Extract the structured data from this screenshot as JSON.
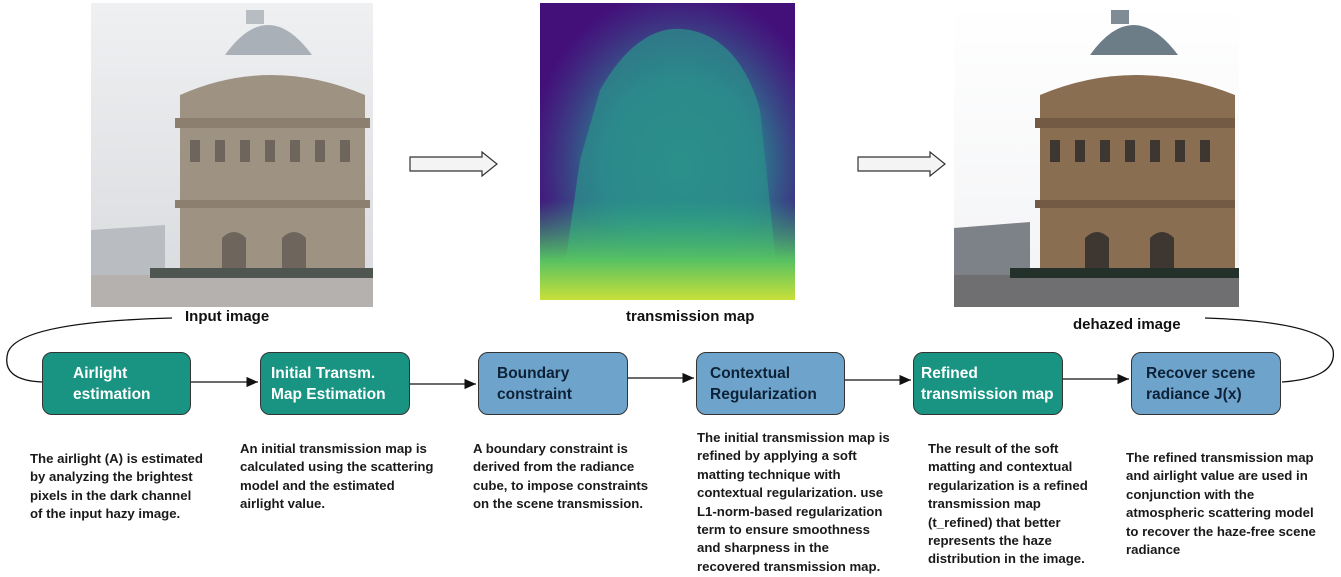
{
  "images": {
    "input_caption": "Input image",
    "transmission_caption": "transmission map",
    "dehazed_caption": "dehazed image"
  },
  "colors": {
    "green_node": "#1a9482",
    "blue_node": "#6ea3cc",
    "transmission_low": "#43107a",
    "transmission_high": "#c8e03a"
  },
  "steps": [
    {
      "line1": "Airlight",
      "line2": "estimation",
      "desc": [
        "The airlight (A) is estimated",
        "by analyzing the brightest",
        "pixels in the dark channel",
        "of the input hazy image."
      ]
    },
    {
      "line1": "Initial Transm.",
      "line2": "Map Estimation",
      "desc": [
        "An initial transmission map  is",
        "calculated using the scattering",
        "model and the estimated",
        "airlight value."
      ]
    },
    {
      "line1": "Boundary",
      "line2": "constraint",
      "desc": [
        "A boundary constraint is",
        "derived from the radiance",
        "cube, to  impose constraints",
        "on the scene transmission."
      ]
    },
    {
      "line1": "Contextual",
      "line2": "Regularization",
      "desc": [
        "The initial transmission map is",
        "refined by applying a soft",
        "matting technique with",
        "contextual regularization. use",
        "L1-norm-based regularization",
        "term to ensure smoothness",
        "and sharpness in the",
        "recovered transmission map."
      ]
    },
    {
      "line1": "Refined",
      "line2": "transmission map",
      "desc": [
        "The result of the soft",
        "matting and contextual",
        "regularization is a refined",
        "transmission map",
        "(t_refined) that better",
        "represents the haze",
        "distribution in the image."
      ]
    },
    {
      "line1": "Recover scene",
      "line2": "radiance J(x)",
      "desc": [
        "The refined transmission map",
        "and airlight value are used in",
        "conjunction with the",
        "atmospheric scattering model",
        "to recover the haze-free scene",
        "radiance"
      ]
    }
  ]
}
